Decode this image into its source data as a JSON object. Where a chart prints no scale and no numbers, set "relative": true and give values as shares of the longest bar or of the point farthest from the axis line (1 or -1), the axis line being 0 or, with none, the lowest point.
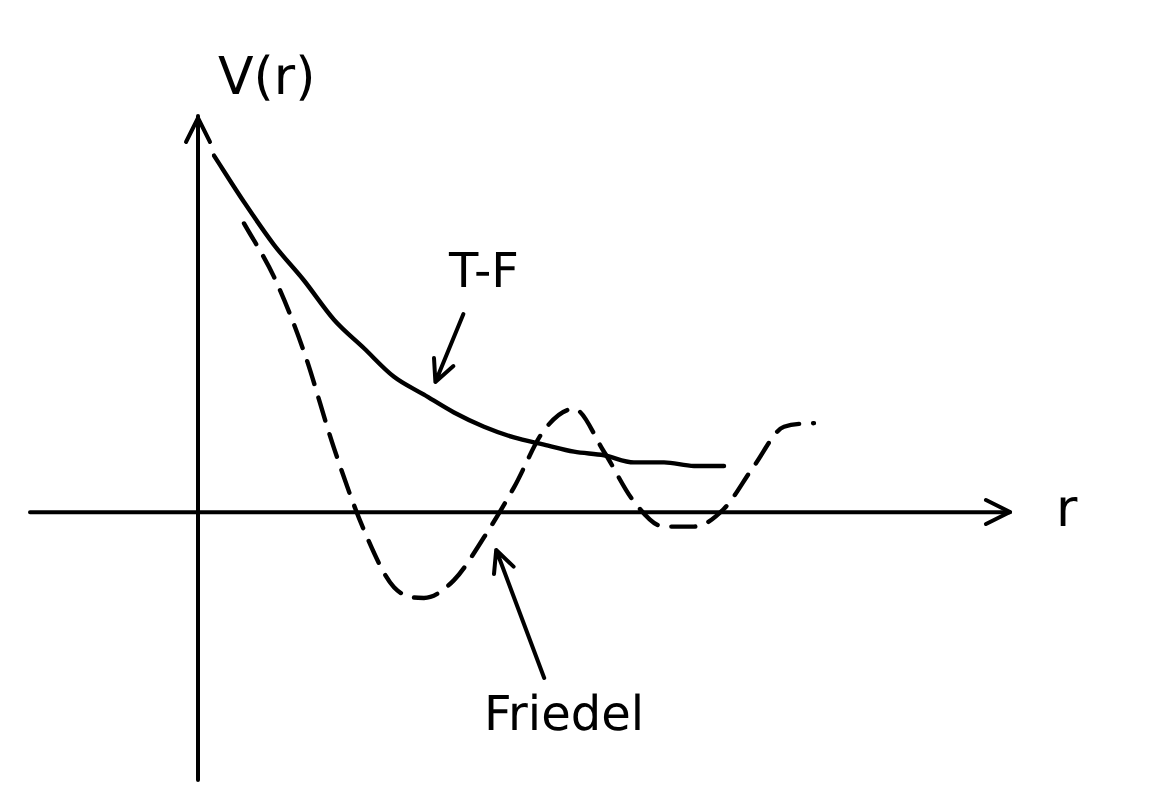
{
  "chart_data": {
    "type": "line",
    "relative": true,
    "xlabel": "r",
    "ylabel": "V(r)",
    "categories": [
      null,
      null,
      null,
      null,
      null,
      null,
      null,
      null,
      null,
      null,
      null,
      null,
      null,
      null,
      null,
      null,
      null,
      null,
      null,
      null,
      null
    ],
    "tick_labels": false,
    "grid": false,
    "legend": false,
    "marker": "none",
    "series": [
      {
        "name": "T-F",
        "color": "#000000",
        "line_style": "solid",
        "values": [
          1.0,
          0.87,
          0.75,
          0.65,
          0.54,
          0.46,
          0.38,
          0.33,
          0.28,
          0.24,
          0.21,
          0.19,
          0.17,
          0.16,
          0.14,
          0.14,
          0.13,
          0.13,
          null,
          null,
          null
        ]
      },
      {
        "name": "Friedel",
        "color": "#000000",
        "line_style": "dashed",
        "values": [
          null,
          0.81,
          0.66,
          0.45,
          0.18,
          -0.05,
          -0.21,
          -0.24,
          -0.19,
          -0.07,
          0.07,
          0.23,
          0.29,
          0.17,
          0.03,
          -0.04,
          -0.04,
          0.01,
          0.13,
          0.24,
          0.25
        ]
      }
    ]
  }
}
